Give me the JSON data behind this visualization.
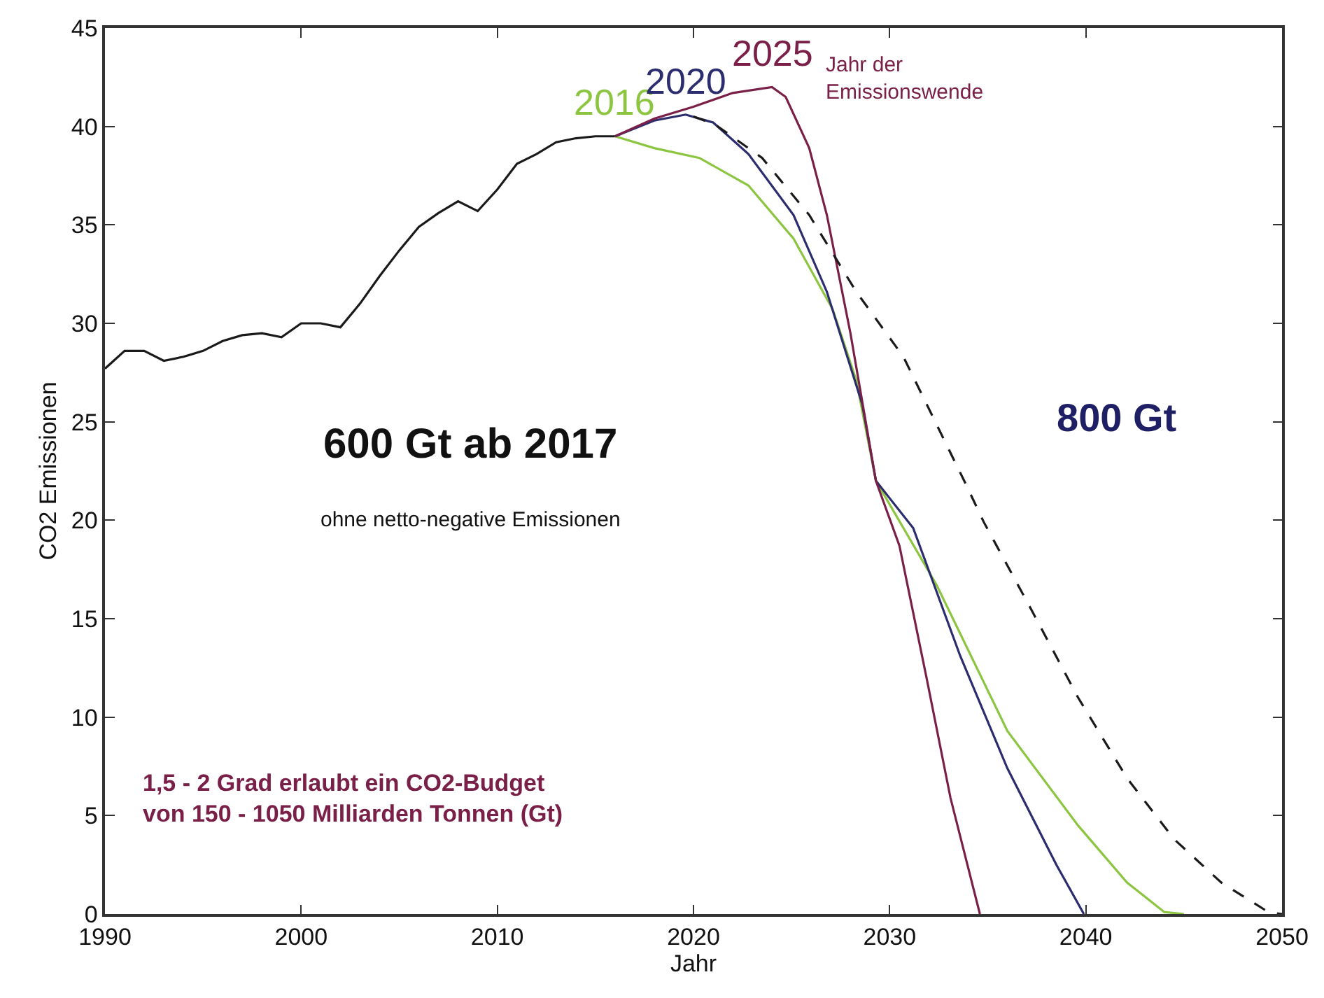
{
  "chart_data": {
    "type": "line",
    "xlabel": "Jahr",
    "ylabel": "CO2 Emissionen",
    "xlim": [
      1990,
      2050
    ],
    "ylim": [
      0,
      45
    ],
    "xticks": [
      1990,
      2000,
      2010,
      2020,
      2030,
      2040,
      2050
    ],
    "yticks": [
      0,
      5,
      10,
      15,
      20,
      25,
      30,
      35,
      40,
      45
    ],
    "legend": false,
    "marker": "none",
    "series": [
      {
        "color": "#1a1a1a",
        "line_style": "solid",
        "x": [
          1990,
          1991,
          1992,
          1993,
          1994,
          1995,
          1996,
          1997,
          1998,
          1999,
          2000,
          2001,
          2002,
          2003,
          2004,
          2005,
          2006,
          2007,
          2008,
          2009,
          2010,
          2011,
          2012,
          2013,
          2014,
          2015,
          2016
        ],
        "values": [
          27.7,
          28.6,
          28.6,
          28.1,
          28.3,
          28.6,
          29.1,
          29.4,
          29.5,
          29.3,
          30.0,
          30.0,
          29.8,
          31.0,
          32.4,
          33.7,
          34.9,
          35.6,
          36.2,
          35.7,
          36.8,
          38.1,
          38.6,
          39.2,
          39.4,
          39.5,
          39.5
        ]
      },
      {
        "name": "2016",
        "color": "#8cc540",
        "line_style": "solid",
        "x": [
          2016,
          2018,
          2020.3,
          2022.8,
          2025.1,
          2027.1,
          2028.3,
          2029.3,
          2032.4,
          2036,
          2039.6,
          2042.1,
          2044,
          2045
        ],
        "values": [
          39.5,
          38.9,
          38.4,
          37.0,
          34.3,
          30.7,
          27.1,
          22.0,
          16.7,
          9.3,
          4.5,
          1.6,
          0.1,
          0
        ]
      },
      {
        "name": "2020",
        "color": "#2b2d6e",
        "line_style": "solid",
        "x": [
          2016,
          2018,
          2019.6,
          2021,
          2022.8,
          2025.1,
          2026.8,
          2028.6,
          2029.3,
          2031.2,
          2033.6,
          2036,
          2038.5,
          2039.9
        ],
        "values": [
          39.5,
          40.3,
          40.6,
          40.2,
          38.6,
          35.5,
          31.6,
          25.9,
          22.0,
          19.6,
          13.1,
          7.4,
          2.5,
          0
        ]
      },
      {
        "name": "2025",
        "color": "#7a2048",
        "line_style": "solid",
        "x": [
          2016,
          2018,
          2020,
          2022,
          2024,
          2024.7,
          2025.9,
          2026.8,
          2028,
          2029.3,
          2030.5,
          2031.9,
          2033.1,
          2034.6
        ],
        "values": [
          39.5,
          40.4,
          41.0,
          41.7,
          42.0,
          41.5,
          38.9,
          35.5,
          29.5,
          22.0,
          18.7,
          11.9,
          5.9,
          0
        ]
      },
      {
        "color": "#1a1a1a",
        "line_style": "dashed",
        "x": [
          2020,
          2021.1,
          2023.5,
          2025.9,
          2028.3,
          2030.7,
          2033.8,
          2034.8,
          2037.2,
          2039.6,
          2042.1,
          2044.5,
          2046.9,
          2049.3,
          2050
        ],
        "values": [
          40.5,
          40.1,
          38.4,
          35.5,
          31.6,
          28.3,
          22.0,
          19.9,
          15.5,
          11.0,
          6.9,
          3.8,
          1.6,
          0.1,
          0
        ]
      }
    ],
    "annotations": [
      "Jahr der\nEmissionswende",
      "800 Gt",
      "600 Gt ab 2017",
      "ohne netto-negative Emissionen",
      "1,5 - 2 Grad erlaubt ein CO2-Budget\nvon 150 - 1050 Milliarden Tonnen (Gt)"
    ]
  }
}
